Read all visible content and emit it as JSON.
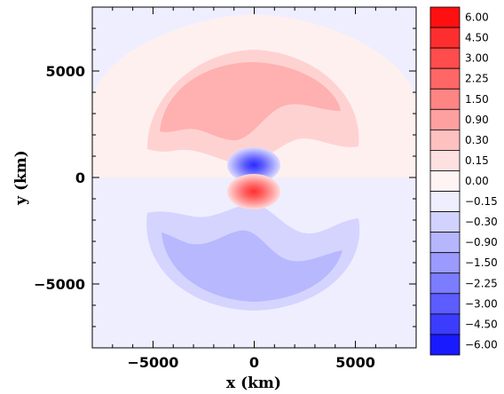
{
  "chart_data": {
    "type": "heatmap",
    "title": "",
    "xlabel": "x (km)",
    "ylabel": "y (km)",
    "xlim": [
      -8000,
      8000
    ],
    "ylim": [
      -8000,
      8000
    ],
    "xticks": [
      -5000,
      0,
      5000
    ],
    "xtick_labels": [
      "−5000",
      "0",
      "5000"
    ],
    "yticks": [
      -5000,
      0,
      5000
    ],
    "ytick_labels": [
      "−5000",
      "0",
      "5000"
    ],
    "grid": false,
    "colorbar": {
      "position": "right",
      "levels": [
        "6.00",
        "4.50",
        "3.00",
        "2.25",
        "1.50",
        "0.90",
        "0.30",
        "0.15",
        "0.00",
        "−0.15",
        "−0.30",
        "−0.90",
        "−1.50",
        "−2.25",
        "−3.00",
        "−4.50",
        "−6.00"
      ],
      "colors": [
        "#ff1010",
        "#ff2e2e",
        "#ff4c4c",
        "#ff6666",
        "#ff8484",
        "#ffa0a0",
        "#ffc0c0",
        "#ffe0e0",
        "#fff4f4",
        "#eeeeff",
        "#d2d2ff",
        "#b6b6ff",
        "#9a9aff",
        "#7c7cff",
        "#5c5cff",
        "#3c3cff",
        "#1a1aff"
      ]
    },
    "features": [
      {
        "name": "outer positive cap",
        "sign": "positive",
        "level": 0.15
      },
      {
        "name": "positive crescent",
        "sign": "positive",
        "level": 0.3
      },
      {
        "name": "inner positive crescent",
        "sign": "positive",
        "level": 0.9
      },
      {
        "name": "negative crescent",
        "sign": "negative",
        "level": -0.15
      },
      {
        "name": "inner negative crescent",
        "sign": "negative",
        "level": -0.3
      },
      {
        "name": "central negative core",
        "sign": "negative",
        "level": -3.0
      },
      {
        "name": "central positive core",
        "sign": "positive",
        "level": 3.0
      }
    ]
  }
}
